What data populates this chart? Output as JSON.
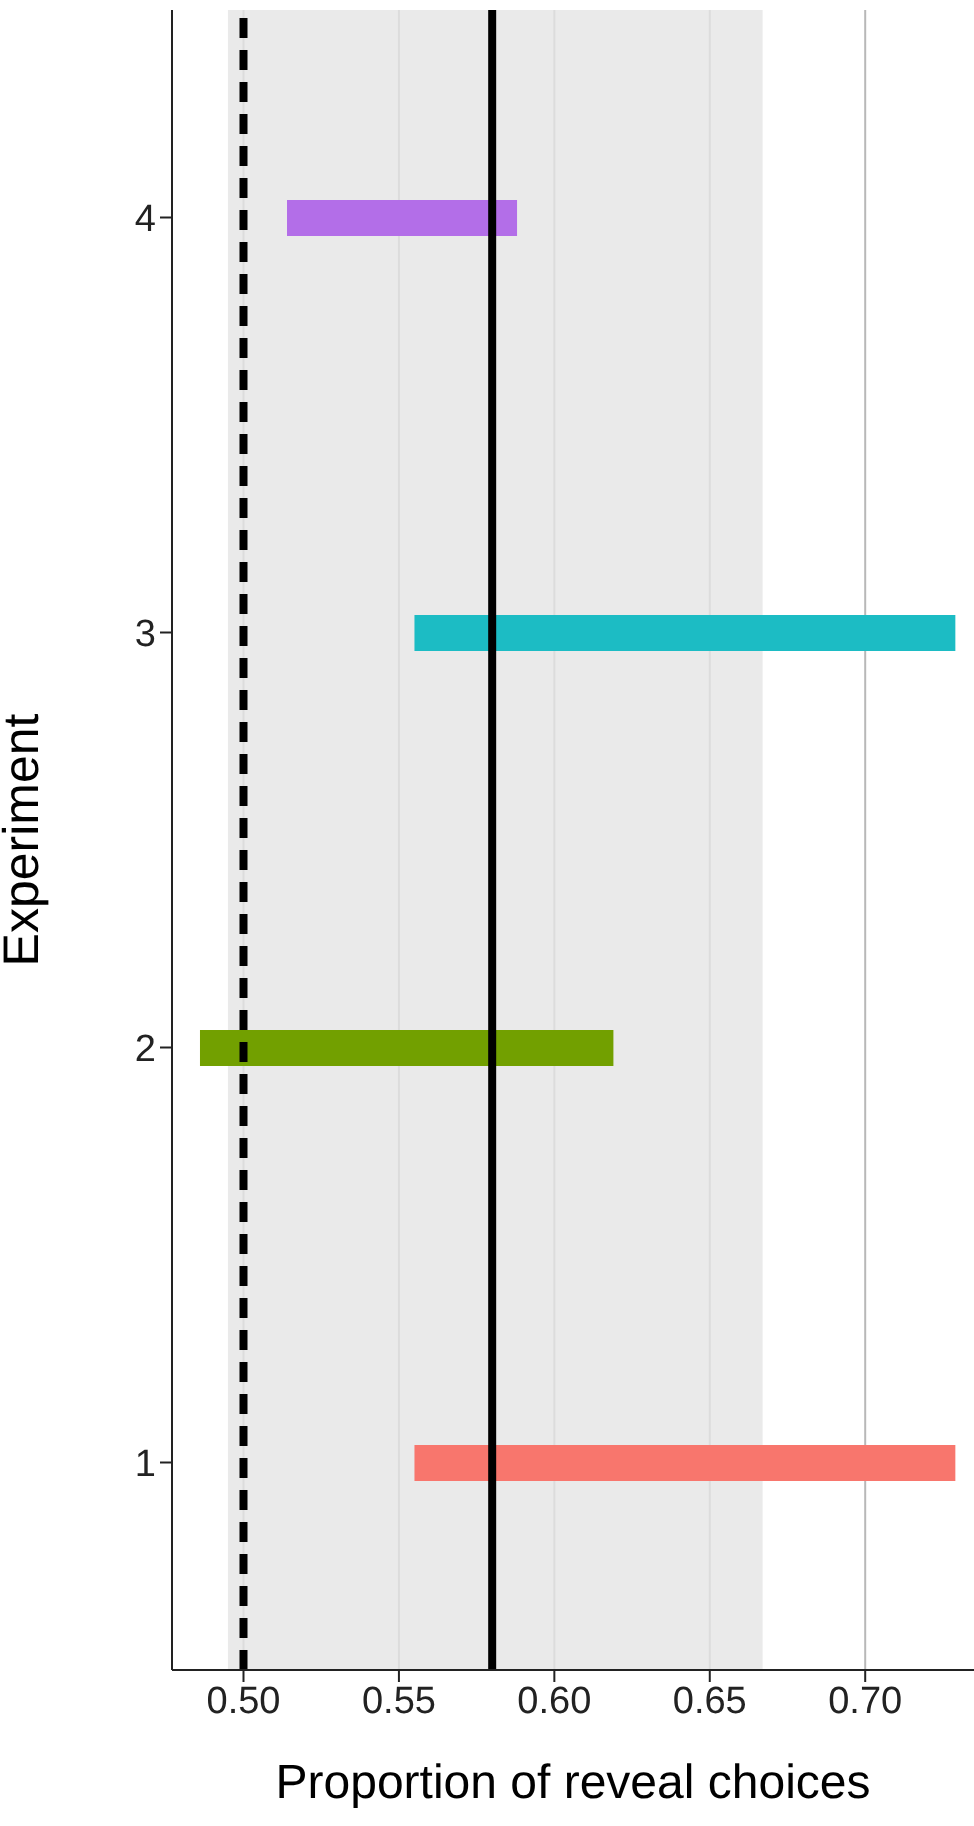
{
  "chart_data": {
    "type": "bar",
    "orientation": "horizontal",
    "xlabel": "Proportion of reveal choices",
    "ylabel": "Experiment",
    "categories": [
      "4",
      "3",
      "2",
      "1"
    ],
    "base": [
      0.514,
      0.555,
      0.486,
      0.555
    ],
    "values": [
      0.074,
      0.174,
      0.133,
      0.174
    ],
    "colors": [
      "#b36ee8",
      "#1cbcc4",
      "#72a000",
      "#f8766d"
    ],
    "xlim": [
      0.477,
      0.735
    ],
    "xticks": [
      {
        "value": 0.5,
        "label": "0.50"
      },
      {
        "value": 0.55,
        "label": "0.55"
      },
      {
        "value": 0.6,
        "label": "0.60"
      },
      {
        "value": 0.65,
        "label": "0.65"
      },
      {
        "value": 0.7,
        "label": "0.70"
      }
    ],
    "grid": "x",
    "ref_lines": [
      {
        "axis": "x",
        "value": 0.5,
        "label": null,
        "color": "#000000",
        "line_style": "dashed"
      },
      {
        "axis": "x",
        "value": 0.58,
        "label": null,
        "color": "#000000",
        "line_style": "solid"
      }
    ],
    "bands": [
      {
        "axis": "x",
        "from": 0.495,
        "to": 0.667,
        "label": null,
        "color": "#e5e5e5"
      }
    ]
  }
}
